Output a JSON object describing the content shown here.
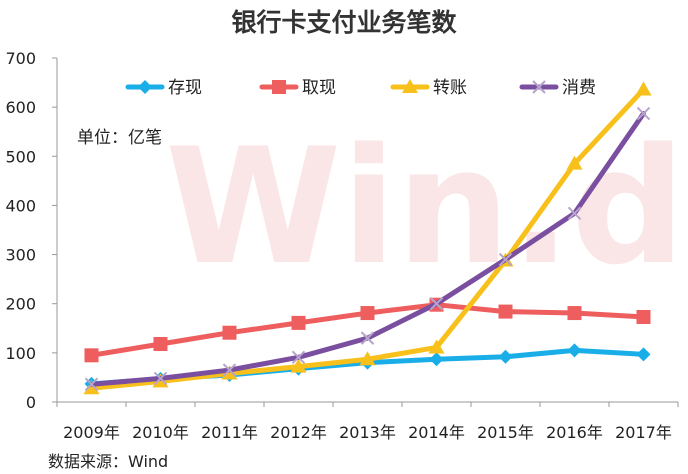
{
  "chart_data": {
    "type": "line",
    "title": "银行卡支付业务笔数",
    "unit_label": "单位：亿笔",
    "source": "数据来源：Wind",
    "watermark": "Win.d",
    "xlabel": "",
    "ylabel": "",
    "ylim": [
      0,
      700
    ],
    "yticks": [
      0,
      100,
      200,
      300,
      400,
      500,
      600,
      700
    ],
    "grid": false,
    "legend": "top",
    "categories": [
      "2009年",
      "2010年",
      "2011年",
      "2012年",
      "2013年",
      "2014年",
      "2015年",
      "2016年",
      "2017年"
    ],
    "series": [
      {
        "name": "存现",
        "color": "#1aaee8",
        "marker": "diamond",
        "values": [
          37,
          47,
          55,
          68,
          80,
          87,
          92,
          105,
          97
        ]
      },
      {
        "name": "取现",
        "color": "#ee5e5e",
        "marker": "square",
        "values": [
          95,
          118,
          141,
          161,
          181,
          198,
          184,
          181,
          173
        ]
      },
      {
        "name": "转账",
        "color": "#f7c01a",
        "marker": "triangle",
        "values": [
          28,
          42,
          58,
          72,
          87,
          111,
          288,
          485,
          636
        ]
      },
      {
        "name": "消费",
        "color": "#7b4fa0",
        "marker": "x",
        "values": [
          36,
          48,
          65,
          91,
          130,
          200,
          290,
          384,
          587
        ]
      }
    ]
  }
}
